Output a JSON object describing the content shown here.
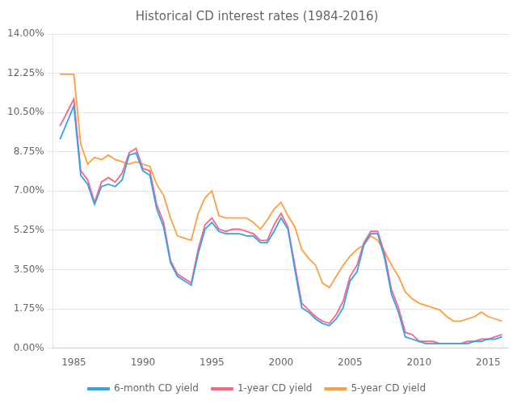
{
  "chart_data": {
    "type": "line",
    "title": "Historical CD interest rates (1984-2016)",
    "x": [
      1984,
      1985,
      1985.5,
      1986,
      1986.5,
      1987,
      1987.5,
      1988,
      1988.5,
      1989,
      1989.5,
      1990,
      1990.5,
      1991,
      1991.5,
      1992,
      1992.5,
      1993,
      1993.5,
      1994,
      1994.5,
      1995,
      1995.5,
      1996,
      1996.5,
      1997,
      1997.5,
      1998,
      1998.5,
      1999,
      1999.5,
      2000,
      2000.5,
      2001,
      2001.5,
      2002,
      2002.5,
      2003,
      2003.5,
      2004,
      2004.5,
      2005,
      2005.5,
      2006,
      2006.5,
      2007,
      2007.5,
      2008,
      2008.5,
      2009,
      2009.5,
      2010,
      2010.5,
      2011,
      2011.5,
      2012,
      2012.5,
      2013,
      2013.5,
      2014,
      2014.5,
      2015,
      2015.5,
      2016
    ],
    "series": [
      {
        "name": "6-month CD yield",
        "values": [
          0.093,
          0.108,
          0.077,
          0.073,
          0.064,
          0.072,
          0.073,
          0.072,
          0.075,
          0.086,
          0.087,
          0.079,
          0.077,
          0.062,
          0.054,
          0.038,
          0.032,
          0.03,
          0.028,
          0.042,
          0.053,
          0.056,
          0.052,
          0.051,
          0.051,
          0.051,
          0.05,
          0.05,
          0.047,
          0.047,
          0.052,
          0.058,
          0.053,
          0.035,
          0.018,
          0.016,
          0.013,
          0.011,
          0.01,
          0.013,
          0.018,
          0.03,
          0.034,
          0.046,
          0.051,
          0.051,
          0.04,
          0.024,
          0.016,
          0.005,
          0.004,
          0.003,
          0.002,
          0.002,
          0.002,
          0.002,
          0.002,
          0.002,
          0.002,
          0.003,
          0.003,
          0.004,
          0.004,
          0.005
        ]
      },
      {
        "name": "1-year CD yield",
        "values": [
          0.099,
          0.111,
          0.079,
          0.075,
          0.065,
          0.074,
          0.076,
          0.074,
          0.078,
          0.087,
          0.089,
          0.08,
          0.079,
          0.064,
          0.056,
          0.039,
          0.033,
          0.031,
          0.029,
          0.044,
          0.055,
          0.058,
          0.053,
          0.052,
          0.053,
          0.053,
          0.052,
          0.051,
          0.048,
          0.048,
          0.055,
          0.06,
          0.054,
          0.037,
          0.02,
          0.017,
          0.014,
          0.012,
          0.011,
          0.015,
          0.021,
          0.032,
          0.037,
          0.047,
          0.052,
          0.052,
          0.042,
          0.026,
          0.018,
          0.007,
          0.006,
          0.003,
          0.003,
          0.003,
          0.002,
          0.002,
          0.002,
          0.002,
          0.003,
          0.003,
          0.004,
          0.004,
          0.005,
          0.006
        ]
      },
      {
        "name": "5-year CD yield",
        "values": [
          0.122,
          0.122,
          0.091,
          0.082,
          0.085,
          0.084,
          0.086,
          0.084,
          0.083,
          0.082,
          0.083,
          0.082,
          0.081,
          0.073,
          0.068,
          0.058,
          0.05,
          0.049,
          0.048,
          0.06,
          0.067,
          0.07,
          0.059,
          0.058,
          0.058,
          0.058,
          0.058,
          0.056,
          0.053,
          0.057,
          0.062,
          0.065,
          0.059,
          0.054,
          0.044,
          0.04,
          0.037,
          0.029,
          0.027,
          0.032,
          0.037,
          0.041,
          0.044,
          0.046,
          0.05,
          0.048,
          0.043,
          0.037,
          0.032,
          0.025,
          0.022,
          0.02,
          0.019,
          0.018,
          0.017,
          0.014,
          0.012,
          0.012,
          0.013,
          0.014,
          0.016,
          0.014,
          0.013,
          0.012
        ]
      }
    ],
    "xlim": [
      1983.5,
      2016.5
    ],
    "xticks": [
      1985,
      1990,
      1995,
      2000,
      2005,
      2010,
      2015
    ],
    "ylim": [
      0.0,
      0.14
    ],
    "yticks": [
      {
        "value": 0.0,
        "label": "0.00%"
      },
      {
        "value": 0.0175,
        "label": "1.75%"
      },
      {
        "value": 0.035,
        "label": "3.50%"
      },
      {
        "value": 0.0525,
        "label": "5.25%"
      },
      {
        "value": 0.07,
        "label": "7.00%"
      },
      {
        "value": 0.0875,
        "label": "8.75%"
      },
      {
        "value": 0.105,
        "label": "10.50%"
      },
      {
        "value": 0.1225,
        "label": "12.25%"
      },
      {
        "value": 0.14,
        "label": "14.00%"
      }
    ],
    "grid": true,
    "legend": "bottom"
  }
}
